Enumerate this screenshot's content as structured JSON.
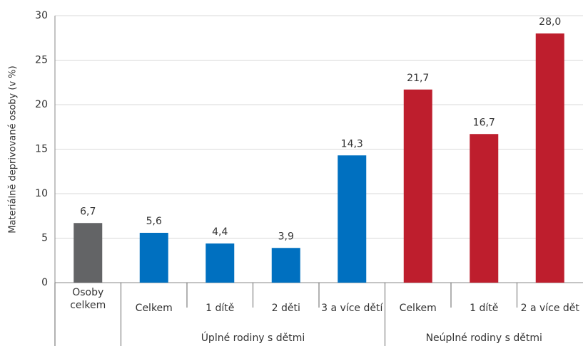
{
  "chart_data": {
    "type": "bar",
    "y_label": "Materiálně deprivované osoby (v %)",
    "categories": [
      "Osoby celkem",
      "Celkem",
      "1 dítě",
      "2 děti",
      "3 a více dětí",
      "Celkem",
      "1 dítě",
      "2 a více dět"
    ],
    "category_groups": [
      null,
      "Úplné rodiny s dětmi",
      "Úplné rodiny s dětmi",
      "Úplné rodiny s dětmi",
      "Úplné rodiny s dětmi",
      "Neúplné rodiny s dětmi",
      "Neúplné rodiny s dětmi",
      "Neúplné rodiny s dětmi"
    ],
    "values": [
      6.7,
      5.6,
      4.4,
      3.9,
      14.3,
      21.7,
      16.7,
      28.0
    ],
    "value_labels": [
      "6,7",
      "5,6",
      "4,4",
      "3,9",
      "14,3",
      "21,7",
      "16,7",
      "28,0"
    ],
    "colors": [
      "#636466",
      "#0070c0",
      "#0070c0",
      "#0070c0",
      "#0070c0",
      "#be1e2d",
      "#be1e2d",
      "#be1e2d"
    ],
    "ylim": [
      0,
      30
    ],
    "yticks": [
      0,
      5,
      10,
      15,
      20,
      25,
      30
    ],
    "grid": true
  }
}
